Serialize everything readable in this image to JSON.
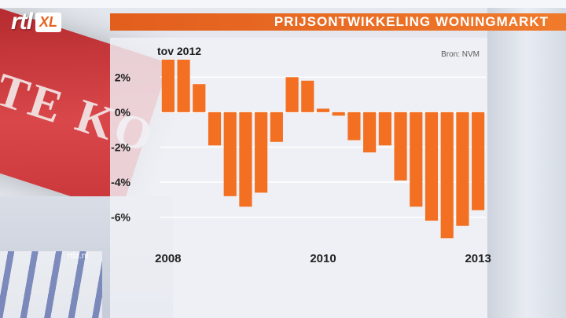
{
  "logo": {
    "rtl": "rtl",
    "xl": "XL"
  },
  "header": {
    "title": "PRIJSONTWIKKELING WONINGMARKT"
  },
  "background_sign_text": "TE KO",
  "site_link": "rtlz.nl",
  "colors": {
    "accent": "#f36f22",
    "header": "#e8621d",
    "grid": "#ffffff"
  },
  "chart_data": {
    "type": "bar",
    "title": "PRIJSONTWIKKELING WONINGMARKT",
    "subtitle": "tov 2012",
    "source": "Bron: NVM",
    "ylim": [
      -7.5,
      3.0
    ],
    "yticks": [
      2,
      0,
      -2,
      -4,
      -6
    ],
    "ytick_labels": [
      "2%",
      "0%",
      "-2%",
      "-4%",
      "-6%"
    ],
    "xtick_labels": [
      "2008",
      "2010",
      "2013"
    ],
    "xtick_bar_index": [
      0,
      10,
      20
    ],
    "grid": true,
    "values": [
      3.0,
      3.0,
      1.6,
      -1.9,
      -4.8,
      -5.4,
      -4.6,
      -1.7,
      2.0,
      1.8,
      0.2,
      -0.2,
      -1.6,
      -2.3,
      -1.9,
      -3.9,
      -5.4,
      -6.2,
      -7.2,
      -6.5,
      -5.6
    ]
  }
}
